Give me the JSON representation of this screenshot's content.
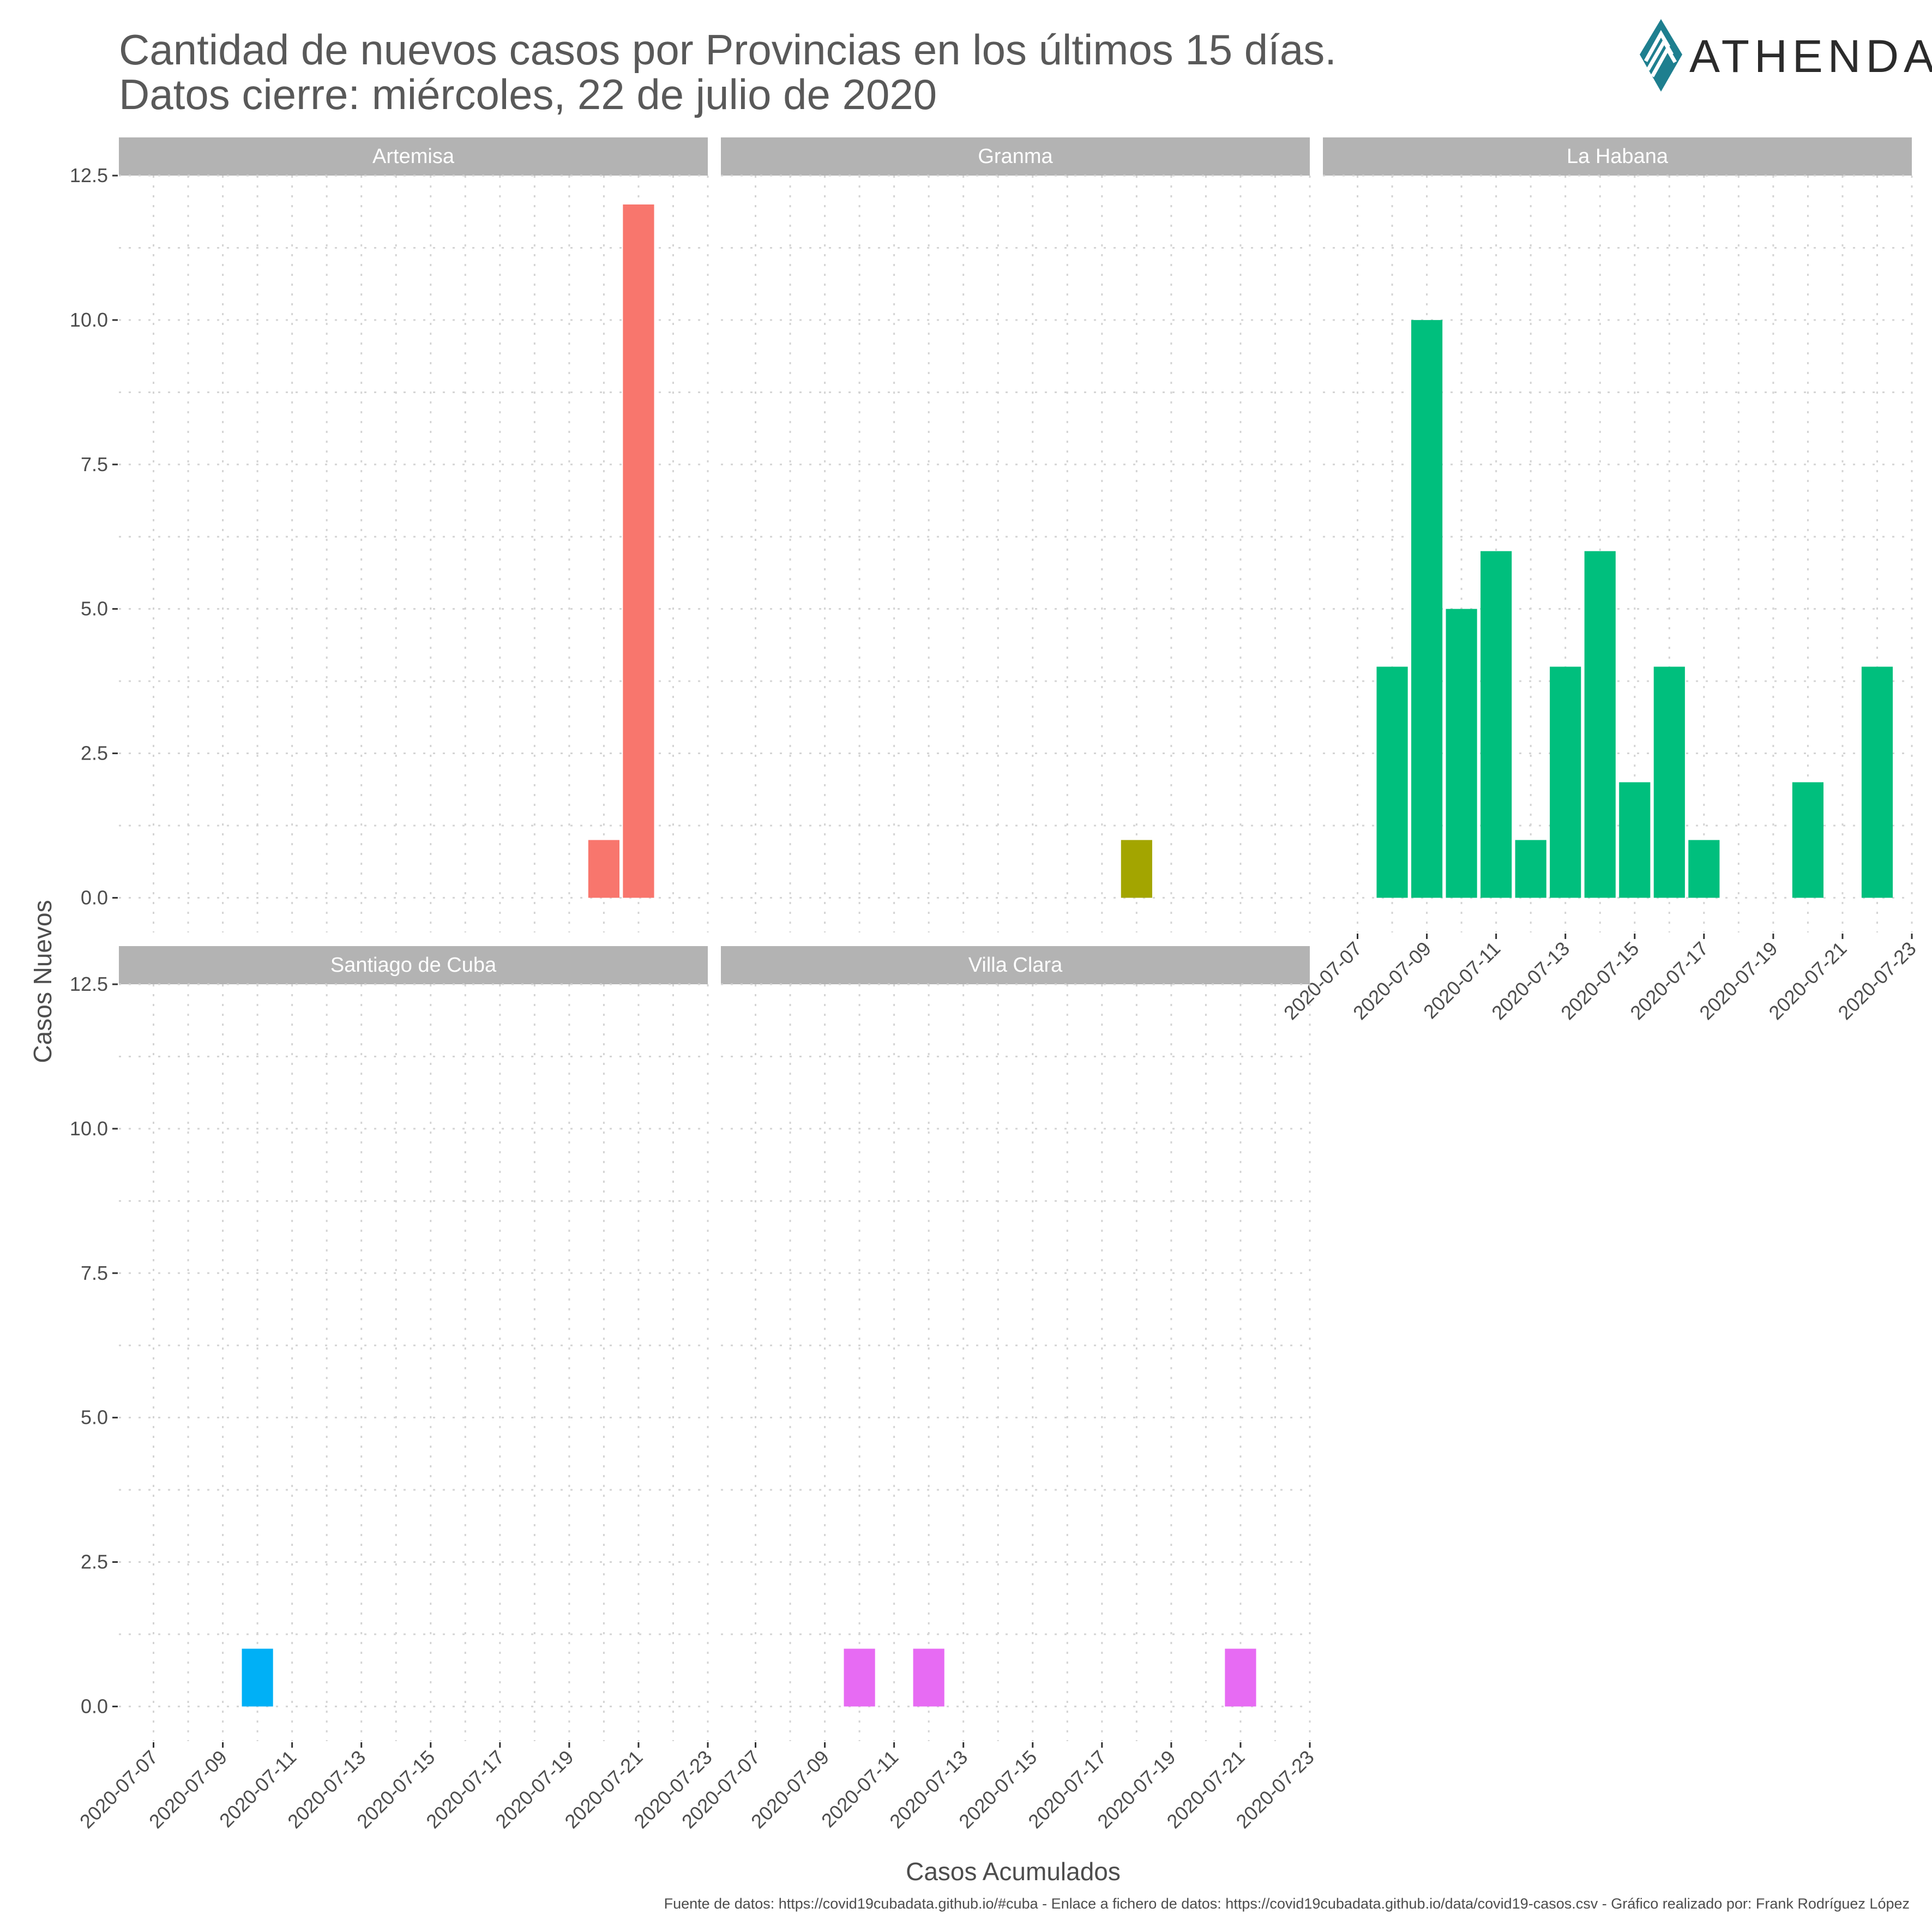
{
  "title_line1": "Cantidad de nuevos casos por Provincias en los últimos 15 días.",
  "title_line2": "Datos cierre: miércoles, 22 de julio de 2020",
  "logo_text": "ATHENDAT",
  "caption": "Fuente de datos: https://covid19cubadata.github.io/#cuba - Enlace a fichero de datos: https://covid19cubadata.github.io/data/covid19-casos.csv - Gráfico realizado por: Frank Rodríguez López",
  "chart_data": {
    "type": "bar",
    "facet_layout": "3 columns, 2 rows",
    "xlabel": "Casos Acumulados",
    "ylabel": "Casos Nuevos",
    "ylim": [
      -0.6,
      12.5
    ],
    "y_ticks": [
      0.0,
      2.5,
      5.0,
      7.5,
      10.0,
      12.5
    ],
    "y_tick_labels": [
      "0.0",
      "2.5",
      "5.0",
      "7.5",
      "10.0",
      "12.5"
    ],
    "x_range": [
      "2020-07-06",
      "2020-07-23"
    ],
    "x_ticks": [
      "2020-07-07",
      "2020-07-09",
      "2020-07-11",
      "2020-07-13",
      "2020-07-15",
      "2020-07-17",
      "2020-07-19",
      "2020-07-21",
      "2020-07-23"
    ],
    "grid": true,
    "legend": "none",
    "facets": [
      {
        "name": "Artemisa",
        "color": "#F8766D",
        "x": [
          "2020-07-20",
          "2020-07-21"
        ],
        "values": [
          1,
          12
        ]
      },
      {
        "name": "Granma",
        "color": "#A3A500",
        "x": [
          "2020-07-18"
        ],
        "values": [
          1
        ]
      },
      {
        "name": "La Habana",
        "color": "#00BF7D",
        "x": [
          "2020-07-08",
          "2020-07-09",
          "2020-07-10",
          "2020-07-11",
          "2020-07-12",
          "2020-07-13",
          "2020-07-14",
          "2020-07-15",
          "2020-07-16",
          "2020-07-17",
          "2020-07-20",
          "2020-07-22"
        ],
        "values": [
          4,
          10,
          5,
          6,
          1,
          4,
          6,
          2,
          4,
          1,
          2,
          4
        ]
      },
      {
        "name": "Santiago de Cuba",
        "color": "#00B0F6",
        "x": [
          "2020-07-10"
        ],
        "values": [
          1
        ]
      },
      {
        "name": "Villa Clara",
        "color": "#E76BF3",
        "x": [
          "2020-07-10",
          "2020-07-12",
          "2020-07-21"
        ],
        "values": [
          1,
          1,
          1
        ]
      }
    ]
  }
}
